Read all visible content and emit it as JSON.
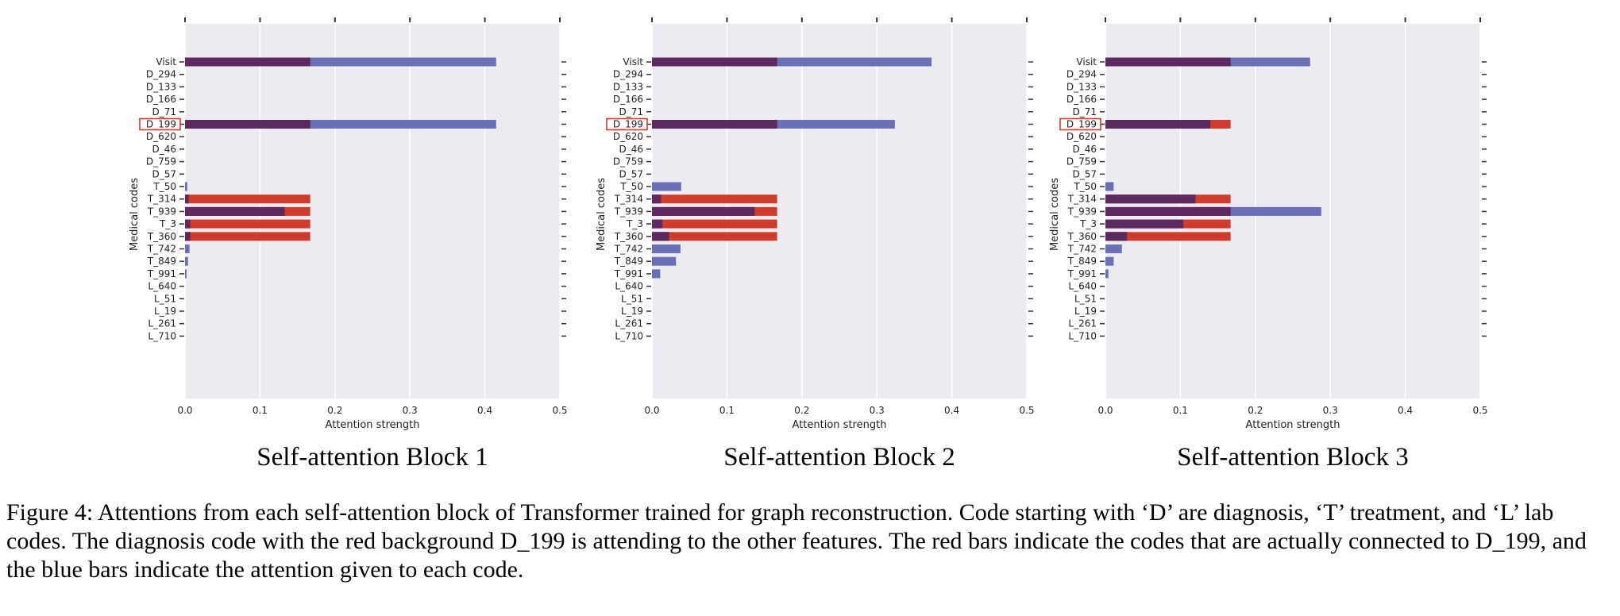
{
  "chart_data": [
    {
      "type": "bar",
      "orientation": "horizontal",
      "title": "Self-attention Block 1",
      "xlabel": "Attention strength",
      "ylabel": "Medical codes",
      "xlim": [
        0.0,
        0.5
      ],
      "xticks": [
        "0.0",
        "0.1",
        "0.2",
        "0.3",
        "0.4",
        "0.5"
      ],
      "grid": true,
      "highlighted_category": "D_199",
      "categories": [
        "Visit",
        "D_294",
        "D_133",
        "D_166",
        "D_71",
        "D_199",
        "D_620",
        "D_46",
        "D_759",
        "D_57",
        "T_50",
        "T_314",
        "T_939",
        "T_3",
        "T_360",
        "T_742",
        "T_849",
        "T_991",
        "L_640",
        "L_51",
        "L_19",
        "L_261",
        "L_710"
      ],
      "series": [
        {
          "color": "#6b6fb5",
          "role": "attention",
          "values": [
            0.415,
            0,
            0,
            0,
            0,
            0.415,
            0,
            0,
            0,
            0,
            0.003,
            0.005,
            0.133,
            0.007,
            0.007,
            0.006,
            0.004,
            0.002,
            0,
            0,
            0,
            0,
            0
          ]
        },
        {
          "color": "#d23b2c",
          "role": "connected",
          "values": [
            0.167,
            0,
            0,
            0,
            0,
            0.167,
            0,
            0,
            0,
            0,
            0,
            0.167,
            0.167,
            0.167,
            0.167,
            0,
            0,
            0,
            0,
            0,
            0,
            0,
            0
          ]
        }
      ]
    },
    {
      "type": "bar",
      "orientation": "horizontal",
      "title": "Self-attention Block 2",
      "xlabel": "Attention strength",
      "ylabel": "Medical codes",
      "xlim": [
        0.0,
        0.5
      ],
      "xticks": [
        "0.0",
        "0.1",
        "0.2",
        "0.3",
        "0.4",
        "0.5"
      ],
      "grid": true,
      "highlighted_category": "D_199",
      "categories": [
        "Visit",
        "D_294",
        "D_133",
        "D_166",
        "D_71",
        "D_199",
        "D_620",
        "D_46",
        "D_759",
        "D_57",
        "T_50",
        "T_314",
        "T_939",
        "T_3",
        "T_360",
        "T_742",
        "T_849",
        "T_991",
        "L_640",
        "L_51",
        "L_19",
        "L_261",
        "L_710"
      ],
      "series": [
        {
          "color": "#6b6fb5",
          "role": "attention",
          "values": [
            0.373,
            0,
            0,
            0,
            0,
            0.324,
            0,
            0,
            0,
            0,
            0.039,
            0.012,
            0.137,
            0.014,
            0.023,
            0.038,
            0.032,
            0.011,
            0,
            0,
            0,
            0,
            0
          ]
        },
        {
          "color": "#d23b2c",
          "role": "connected",
          "values": [
            0.167,
            0,
            0,
            0,
            0,
            0.167,
            0,
            0,
            0,
            0,
            0,
            0.167,
            0.167,
            0.167,
            0.167,
            0,
            0,
            0,
            0,
            0,
            0,
            0,
            0
          ]
        }
      ]
    },
    {
      "type": "bar",
      "orientation": "horizontal",
      "title": "Self-attention Block 3",
      "xlabel": "Attention strength",
      "ylabel": "Medical codes",
      "xlim": [
        0.0,
        0.5
      ],
      "xticks": [
        "0.0",
        "0.1",
        "0.2",
        "0.3",
        "0.4",
        "0.5"
      ],
      "grid": true,
      "highlighted_category": "D_199",
      "categories": [
        "Visit",
        "D_294",
        "D_133",
        "D_166",
        "D_71",
        "D_199",
        "D_620",
        "D_46",
        "D_759",
        "D_57",
        "T_50",
        "T_314",
        "T_939",
        "T_3",
        "T_360",
        "T_742",
        "T_849",
        "T_991",
        "L_640",
        "L_51",
        "L_19",
        "L_261",
        "L_710"
      ],
      "series": [
        {
          "color": "#6b6fb5",
          "role": "attention",
          "values": [
            0.273,
            0,
            0,
            0,
            0,
            0.14,
            0,
            0,
            0,
            0,
            0.011,
            0.12,
            0.288,
            0.104,
            0.029,
            0.022,
            0.011,
            0.004,
            0,
            0,
            0,
            0,
            0
          ]
        },
        {
          "color": "#d23b2c",
          "role": "connected",
          "values": [
            0.167,
            0,
            0,
            0,
            0,
            0.167,
            0,
            0,
            0,
            0,
            0,
            0.167,
            0.167,
            0.167,
            0.167,
            0,
            0,
            0,
            0,
            0,
            0,
            0,
            0
          ]
        }
      ]
    }
  ],
  "colors": {
    "attention": "#6b6fb5",
    "connected": "#d23b2c",
    "overlap": "#5c2a5e",
    "plot_background": "#ebebf0",
    "highlight_box": "#d23b2c"
  },
  "caption": "Figure 4: Attentions from each self-attention block of Transformer trained for graph reconstruction. Code starting with ‘D’ are diagnosis, ‘T’ treatment, and ‘L’ lab codes. The diagnosis code with the red background D_199 is attending to the other features. The red bars indicate the codes that are actually connected to D_199, and the blue bars indicate the attention given to each code."
}
